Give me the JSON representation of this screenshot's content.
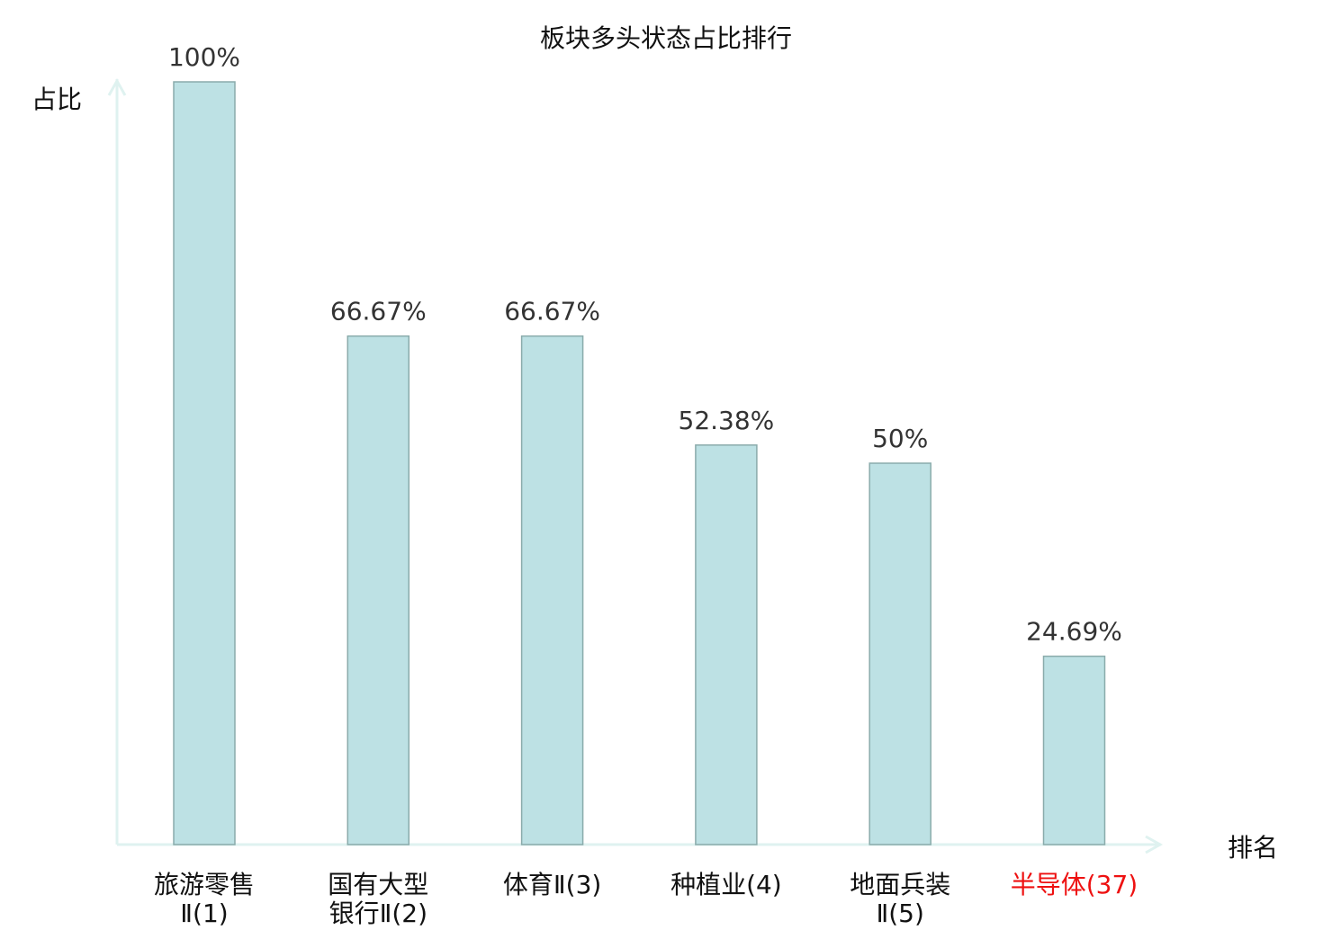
{
  "chart_data": {
    "type": "bar",
    "title": "板块多头状态占比排行",
    "ylabel": "占比",
    "xlabel": "排名",
    "categories": [
      "旅游零售Ⅱ(1)",
      "国有大型银行Ⅱ(2)",
      "体育Ⅱ(3)",
      "种植业(4)",
      "地面兵装Ⅱ(5)",
      "半导体(37)"
    ],
    "values": [
      100,
      66.67,
      66.67,
      52.38,
      50,
      24.69
    ],
    "data_labels": [
      "100%",
      "66.67%",
      "66.67%",
      "52.38%",
      "50%",
      "24.69%"
    ],
    "ylim": [
      0,
      100
    ],
    "grid": false,
    "highlighted_category_index": 5,
    "colors": {
      "bar_fill": "#bde1e4",
      "bar_stroke": "#8aabab",
      "axis": "#dff2f0",
      "highlight_label": "#ee1111",
      "label": "#333333"
    }
  }
}
